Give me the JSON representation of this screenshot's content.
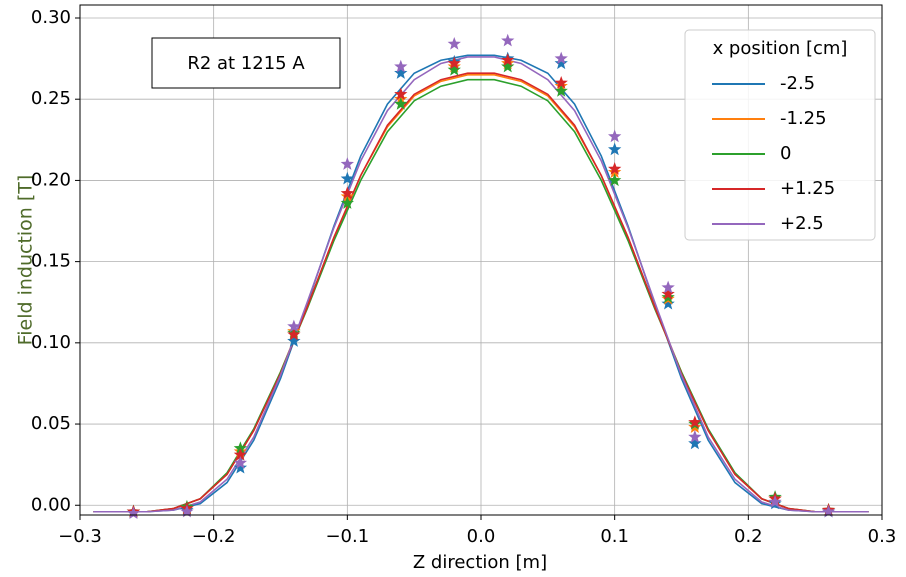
{
  "chart_data": {
    "type": "line",
    "xlabel": "Z direction [m]",
    "ylabel": "Field induction [T]",
    "annotation": "R2 at 1215 A",
    "legend_title": "x position [cm]",
    "legend_position": "upper right",
    "grid": true,
    "xlim": [
      -0.3,
      0.3
    ],
    "ylim": [
      -0.006,
      0.308
    ],
    "xticks": [
      {
        "value": -0.3,
        "label": "−0.3"
      },
      {
        "value": -0.2,
        "label": "−0.2"
      },
      {
        "value": -0.1,
        "label": "−0.1"
      },
      {
        "value": 0,
        "label": "0.0"
      },
      0.1,
      0.2,
      0.3
    ],
    "yticks": [
      {
        "value": 0,
        "label": "0.00"
      },
      0.05,
      {
        "value": 0.1,
        "label": "0.10"
      },
      0.15,
      {
        "value": 0.2,
        "label": "0.20"
      },
      0.25,
      {
        "value": 0.3,
        "label": "0.30"
      }
    ],
    "x": [
      -0.26,
      -0.22,
      -0.18,
      -0.14,
      -0.1,
      -0.06,
      -0.02,
      0.02,
      0.06,
      0.1,
      0.14,
      0.16,
      0.22,
      0.26
    ],
    "fit_x": [
      -0.29,
      -0.27,
      -0.25,
      -0.23,
      -0.21,
      -0.19,
      -0.17,
      -0.15,
      -0.13,
      -0.11,
      -0.09,
      -0.07,
      -0.05,
      -0.03,
      -0.01,
      0.01,
      0.03,
      0.05,
      0.07,
      0.09,
      0.11,
      0.13,
      0.15,
      0.17,
      0.19,
      0.21,
      0.23,
      0.25,
      0.27,
      0.29
    ],
    "series": [
      {
        "name": "-2.5",
        "color": "#1f77b4",
        "values": [
          -0.004,
          -0.003,
          0.023,
          0.101,
          0.201,
          0.266,
          0.273,
          0.275,
          0.272,
          0.219,
          0.124,
          0.038,
          0.001,
          -0.004
        ],
        "fit": [
          -0.004,
          -0.004,
          -0.004,
          -0.003,
          0.001,
          0.014,
          0.04,
          0.078,
          0.124,
          0.172,
          0.215,
          0.247,
          0.266,
          0.274,
          0.277,
          0.277,
          0.274,
          0.266,
          0.247,
          0.215,
          0.172,
          0.124,
          0.078,
          0.04,
          0.014,
          0.001,
          -0.003,
          -0.004,
          -0.004,
          -0.004
        ]
      },
      {
        "name": "-1.25",
        "color": "#ff7f0e",
        "values": [
          -0.004,
          -0.002,
          0.033,
          0.107,
          0.19,
          0.25,
          0.27,
          0.272,
          0.258,
          0.205,
          0.127,
          0.048,
          0.004,
          -0.003
        ],
        "fit": [
          -0.004,
          -0.004,
          -0.004,
          -0.002,
          0.004,
          0.019,
          0.046,
          0.082,
          0.122,
          0.165,
          0.203,
          0.233,
          0.252,
          0.261,
          0.265,
          0.265,
          0.261,
          0.252,
          0.233,
          0.203,
          0.165,
          0.122,
          0.082,
          0.046,
          0.019,
          0.004,
          -0.002,
          -0.004,
          -0.004,
          -0.004
        ]
      },
      {
        "name": "0",
        "color": "#2ca02c",
        "values": [
          -0.004,
          -0.001,
          0.035,
          0.106,
          0.186,
          0.247,
          0.268,
          0.27,
          0.255,
          0.2,
          0.128,
          0.05,
          0.005,
          -0.003
        ],
        "fit": [
          -0.004,
          -0.004,
          -0.004,
          -0.002,
          0.004,
          0.02,
          0.047,
          0.082,
          0.121,
          0.163,
          0.2,
          0.23,
          0.249,
          0.258,
          0.262,
          0.262,
          0.258,
          0.249,
          0.23,
          0.2,
          0.163,
          0.121,
          0.082,
          0.047,
          0.02,
          0.004,
          -0.002,
          -0.004,
          -0.004,
          -0.004
        ]
      },
      {
        "name": "+1.25",
        "color": "#d62728",
        "values": [
          -0.004,
          -0.002,
          0.031,
          0.105,
          0.192,
          0.253,
          0.272,
          0.274,
          0.26,
          0.207,
          0.13,
          0.051,
          0.004,
          -0.003
        ],
        "fit": [
          -0.004,
          -0.004,
          -0.004,
          -0.002,
          0.004,
          0.019,
          0.046,
          0.081,
          0.122,
          0.165,
          0.203,
          0.234,
          0.253,
          0.262,
          0.266,
          0.266,
          0.262,
          0.253,
          0.234,
          0.203,
          0.165,
          0.122,
          0.081,
          0.046,
          0.019,
          0.004,
          -0.002,
          -0.004,
          -0.004,
          -0.004
        ]
      },
      {
        "name": "+2.5",
        "color": "#9467bd",
        "values": [
          -0.005,
          -0.004,
          0.026,
          0.11,
          0.21,
          0.27,
          0.284,
          0.286,
          0.275,
          0.227,
          0.134,
          0.042,
          0.002,
          -0.004
        ],
        "fit": [
          -0.004,
          -0.004,
          -0.004,
          -0.003,
          0.002,
          0.016,
          0.042,
          0.08,
          0.125,
          0.171,
          0.212,
          0.243,
          0.262,
          0.272,
          0.276,
          0.276,
          0.272,
          0.262,
          0.243,
          0.212,
          0.171,
          0.125,
          0.08,
          0.042,
          0.016,
          0.002,
          -0.003,
          -0.004,
          -0.004,
          -0.004
        ]
      }
    ]
  }
}
